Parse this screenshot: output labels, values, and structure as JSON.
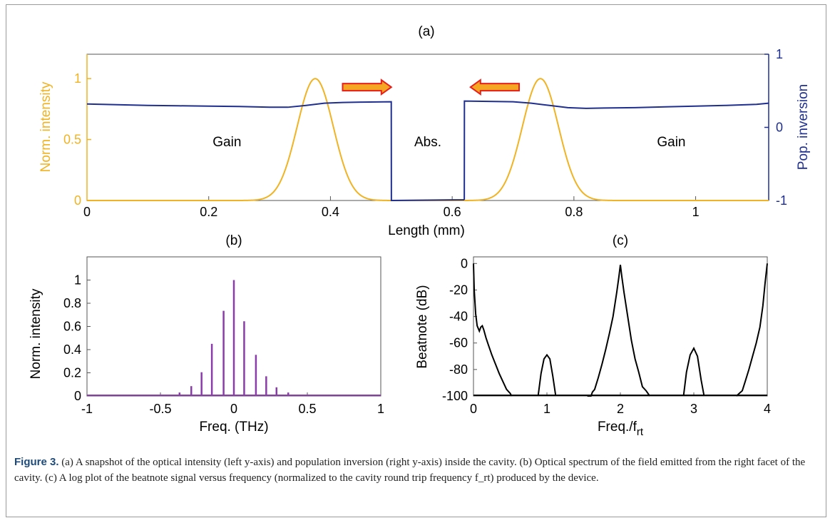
{
  "figure": {
    "caption_label": "Figure 3.",
    "caption_text": "(a) A snapshot of the optical intensity (left y-axis) and population inversion (right y-axis) inside the cavity. (b) Optical spectrum of the field emitted from the right facet of the cavity. (c) A log plot of the beatnote signal versus frequency (normalized to the cavity round trip frequency f_rt) produced by the device."
  },
  "colors": {
    "intensity": "#f0b323",
    "inversion": "#1f2f8f",
    "spectrum": "#8a3ca8",
    "beatnote": "#000000",
    "arrow_fill": "#f5a623",
    "arrow_edge": "#e8201c"
  },
  "chart_data": [
    {
      "panel": "(a)",
      "type": "line",
      "xlabel": "Length (mm)",
      "ylabel_left": "Norm. intensity",
      "ylabel_right": "Pop. inversion",
      "xlim": [
        0,
        1.12
      ],
      "ylim_left": [
        0,
        1.2
      ],
      "ylim_right": [
        -1,
        1
      ],
      "xticks": [
        0,
        0.2,
        0.4,
        0.6,
        0.8,
        1
      ],
      "xtick_labels": [
        "0",
        "0.2",
        "0.4",
        "0.6",
        "0.8",
        "1"
      ],
      "yticks_left": [
        0,
        0.5,
        1
      ],
      "ytick_labels_left": [
        "0",
        "0.5",
        "1"
      ],
      "yticks_right": [
        -1,
        0,
        1
      ],
      "ytick_labels_right": [
        "-1",
        "0",
        "1"
      ],
      "region_labels": [
        {
          "text": "Gain",
          "x": 0.23,
          "y": 0.48
        },
        {
          "text": "Abs.",
          "x": 0.56,
          "y": 0.48
        },
        {
          "text": "Gain",
          "x": 0.96,
          "y": 0.48
        }
      ],
      "arrows": [
        {
          "direction": "right",
          "x_start": 0.42,
          "x_end": 0.5,
          "y": 0.93
        },
        {
          "direction": "left",
          "x_start": 0.71,
          "x_end": 0.63,
          "y": 0.93
        }
      ],
      "series": [
        {
          "name": "Norm. intensity",
          "axis": "left",
          "pulses": [
            {
              "center": 0.375,
              "peak": 1.0,
              "width": 0.042
            },
            {
              "center": 0.745,
              "peak": 1.0,
              "width": 0.042
            }
          ]
        },
        {
          "name": "Pop. inversion",
          "axis": "right",
          "x": [
            0,
            0.05,
            0.1,
            0.15,
            0.2,
            0.25,
            0.3,
            0.33,
            0.36,
            0.39,
            0.42,
            0.45,
            0.4999,
            0.5001,
            0.62,
            0.6199,
            0.6201,
            0.66,
            0.7,
            0.73,
            0.76,
            0.79,
            0.82,
            0.85,
            0.9,
            0.95,
            1.0,
            1.05,
            1.1,
            1.12
          ],
          "values": [
            0.32,
            0.31,
            0.3,
            0.295,
            0.29,
            0.285,
            0.275,
            0.275,
            0.3,
            0.33,
            0.34,
            0.345,
            0.35,
            -1,
            -0.99,
            -0.99,
            0.36,
            0.355,
            0.35,
            0.33,
            0.3,
            0.27,
            0.26,
            0.265,
            0.27,
            0.28,
            0.29,
            0.3,
            0.315,
            0.33
          ]
        }
      ]
    },
    {
      "panel": "(b)",
      "type": "bar",
      "xlabel": "Freq. (THz)",
      "ylabel": "Norm. intensity",
      "xlim": [
        -1,
        1
      ],
      "ylim": [
        0,
        1.2
      ],
      "xticks": [
        -1,
        -0.5,
        0,
        0.5,
        1
      ],
      "xtick_labels": [
        "-1",
        "-0.5",
        "0",
        "0.5",
        "1"
      ],
      "yticks": [
        0,
        0.2,
        0.4,
        0.6,
        0.8,
        1
      ],
      "ytick_labels": [
        "0",
        "0.2",
        "0.4",
        "0.6",
        "0.8",
        "1"
      ],
      "series": [
        {
          "x": [
            -0.52,
            -0.44,
            -0.37,
            -0.29,
            -0.22,
            -0.15,
            -0.07,
            0.0,
            0.07,
            0.15,
            0.22,
            0.29,
            0.37,
            0.44,
            0.52
          ],
          "values": [
            0.003,
            0.01,
            0.03,
            0.085,
            0.205,
            0.45,
            0.735,
            1.0,
            0.645,
            0.355,
            0.17,
            0.075,
            0.03,
            0.01,
            0.003
          ]
        }
      ]
    },
    {
      "panel": "(c)",
      "type": "line",
      "xlabel": "Freq./f_rt",
      "ylabel": "Beatnote (dB)",
      "xlim": [
        0,
        4
      ],
      "ylim": [
        -100,
        5
      ],
      "xticks": [
        0,
        1,
        2,
        3,
        4
      ],
      "xtick_labels": [
        "0",
        "1",
        "2",
        "3",
        "4"
      ],
      "yticks": [
        -100,
        -80,
        -60,
        -40,
        -20,
        0
      ],
      "ytick_labels": [
        "-100",
        "-80",
        "-60",
        "-40",
        "-20",
        "0"
      ],
      "series": [
        {
          "x": [
            0,
            0.01,
            0.03,
            0.05,
            0.08,
            0.1,
            0.12,
            0.14,
            0.17,
            0.2,
            0.25,
            0.3,
            0.35,
            0.4,
            0.45,
            0.5,
            0.52
          ],
          "values": [
            0,
            -20,
            -38,
            -47,
            -51,
            -48,
            -47,
            -50,
            -56,
            -61,
            -69,
            -76,
            -83,
            -89,
            -95,
            -98,
            -100
          ]
        },
        {
          "x": [
            0.88,
            0.92,
            0.96,
            1.0,
            1.04,
            1.08,
            1.12
          ],
          "values": [
            -100,
            -83,
            -72,
            -69,
            -72,
            -85,
            -100
          ]
        },
        {
          "x": [
            1.55,
            1.6,
            1.62,
            1.65,
            1.7,
            1.75,
            1.8,
            1.85,
            1.9,
            1.95,
            1.98,
            2.0,
            2.02,
            2.05,
            2.1,
            2.15,
            2.2,
            2.25,
            2.3,
            2.35,
            2.4
          ],
          "values": [
            -100,
            -100,
            -97,
            -95,
            -86,
            -76,
            -65,
            -53,
            -40,
            -22,
            -10,
            -1,
            -10,
            -22,
            -40,
            -58,
            -72,
            -82,
            -93,
            -96,
            -100
          ]
        },
        {
          "x": [
            2.86,
            2.9,
            2.95,
            3.0,
            3.05,
            3.1,
            3.14
          ],
          "values": [
            -100,
            -82,
            -69,
            -64,
            -70,
            -88,
            -100
          ]
        },
        {
          "x": [
            3.58,
            3.62,
            3.66,
            3.7,
            3.75,
            3.8,
            3.85,
            3.9,
            3.94,
            3.97,
            4.0
          ],
          "values": [
            -100,
            -98,
            -96,
            -89,
            -80,
            -70,
            -60,
            -48,
            -32,
            -15,
            0
          ]
        }
      ]
    }
  ]
}
